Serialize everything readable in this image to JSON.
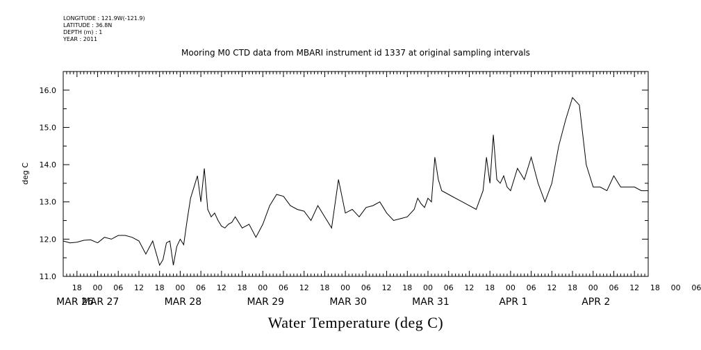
{
  "header": {
    "longitude": "LONGITUDE : 121.9W(-121.9)",
    "latitude": "LATITUDE : 36.8N",
    "depth": "DEPTH (m) : 1",
    "year": "YEAR : 2011"
  },
  "chart_data": {
    "type": "line",
    "title": "Mooring M0 CTD data from MBARI instrument id 1337 at original sampling intervals",
    "xlabel": "Water Temperature (deg C)",
    "ylabel": "deg C",
    "ylim": [
      11.0,
      16.5
    ],
    "yticks": [
      "11.0",
      "12.0",
      "13.0",
      "14.0",
      "15.0",
      "16.0"
    ],
    "xlim_hours": [
      14,
      184
    ],
    "x_hour_ticks": [
      "18",
      "00",
      "06",
      "12",
      "18",
      "00",
      "06",
      "12",
      "18",
      "00",
      "06",
      "12",
      "18",
      "00",
      "06",
      "12",
      "18",
      "00",
      "06",
      "12",
      "18",
      "00",
      "06",
      "12",
      "18",
      "00",
      "06",
      "12",
      "18",
      "00",
      "06",
      "12"
    ],
    "x_day_labels": [
      "MAR 26",
      "MAR 27",
      "MAR 28",
      "MAR 29",
      "MAR 30",
      "MAR 31",
      "APR 1",
      "APR 2"
    ],
    "grid": false,
    "series": [
      {
        "x_unit": "hours since MAR 26 00:00",
        "x": [
          14,
          16,
          18,
          20,
          22,
          24,
          26,
          28,
          30,
          32,
          34,
          36,
          38,
          40,
          42,
          43,
          44,
          45,
          46,
          47,
          48,
          49,
          50,
          51,
          52,
          53,
          54,
          55,
          56,
          57,
          58,
          59,
          60,
          61,
          62,
          63,
          64,
          66,
          68,
          70,
          72,
          74,
          76,
          78,
          80,
          82,
          84,
          86,
          88,
          90,
          92,
          94,
          96,
          98,
          100,
          102,
          104,
          106,
          108,
          110,
          112,
          114,
          116,
          117,
          118,
          119,
          120,
          121,
          122,
          123,
          124,
          126,
          128,
          130,
          132,
          134,
          136,
          137,
          138,
          139,
          140,
          141,
          142,
          143,
          144,
          146,
          148,
          150,
          152,
          154,
          156,
          158,
          160,
          162,
          164,
          166,
          168,
          170,
          172,
          174,
          176,
          178,
          180,
          182,
          184
        ],
        "y": [
          11.95,
          11.9,
          11.92,
          11.97,
          11.98,
          11.9,
          12.05,
          12.0,
          12.1,
          12.1,
          12.05,
          11.95,
          11.6,
          11.95,
          11.3,
          11.45,
          11.9,
          11.95,
          11.3,
          11.8,
          12.0,
          11.85,
          12.5,
          13.1,
          13.4,
          13.7,
          13.0,
          13.9,
          12.8,
          12.6,
          12.7,
          12.5,
          12.35,
          12.3,
          12.4,
          12.45,
          12.6,
          12.3,
          12.4,
          12.05,
          12.4,
          12.9,
          13.2,
          13.15,
          12.9,
          12.8,
          12.75,
          12.5,
          12.9,
          12.6,
          12.3,
          13.6,
          12.7,
          12.8,
          12.6,
          12.85,
          12.9,
          13.0,
          12.7,
          12.5,
          12.55,
          12.6,
          12.8,
          13.1,
          12.95,
          12.85,
          13.1,
          13.0,
          14.2,
          13.6,
          13.3,
          13.2,
          13.1,
          13.0,
          12.9,
          12.8,
          13.3,
          14.2,
          13.5,
          14.8,
          13.6,
          13.5,
          13.7,
          13.4,
          13.3,
          13.9,
          13.6,
          14.2,
          13.5,
          13.0,
          13.5,
          14.5,
          15.2,
          15.8,
          15.6,
          14.0,
          13.4,
          13.4,
          13.3,
          13.7,
          13.4,
          13.4,
          13.4,
          13.3,
          13.3
        ]
      }
    ]
  }
}
